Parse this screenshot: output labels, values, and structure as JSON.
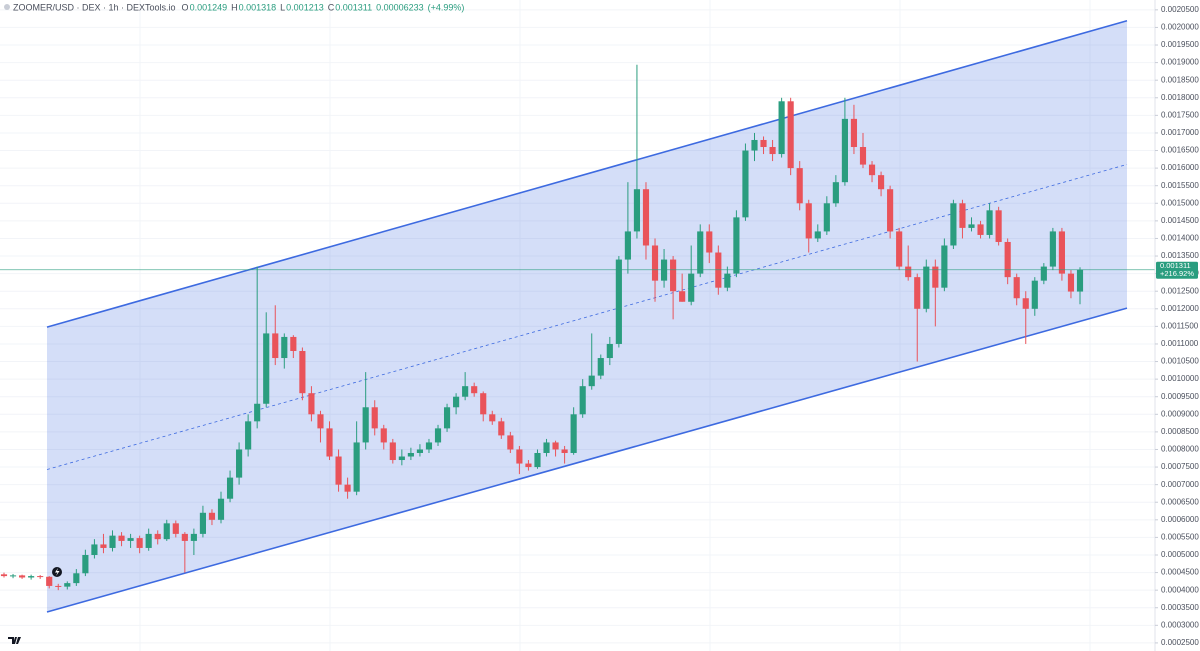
{
  "chart_data": {
    "type": "candlestick",
    "title": "ZOOMER/USD · DEX · 1h · DEXTools.io",
    "ohlc_labels": [
      "O",
      "H",
      "L",
      "C"
    ],
    "change": 6.233e-05,
    "change_pct": {
      "value": 4.99,
      "label": "(+4.99%)"
    },
    "total_change_pct": {
      "value": 216.92,
      "label": "+216.92%"
    },
    "up_color": "#2a9d7f",
    "down_color": "#e9535a",
    "channel_color": "#3d6ae0",
    "grid": true,
    "ylim": [
      0.000227,
      0.002078
    ],
    "yticks": [
      {
        "value": 0.00025,
        "label": "0.0002500"
      },
      {
        "value": 0.0003,
        "label": "0.0003000"
      },
      {
        "value": 0.00035,
        "label": "0.0003500"
      },
      {
        "value": 0.0004,
        "label": "0.0004000"
      },
      {
        "value": 0.00045,
        "label": "0.0004500"
      },
      {
        "value": 0.0005,
        "label": "0.0005000"
      },
      {
        "value": 0.00055,
        "label": "0.0005500"
      },
      {
        "value": 0.0006,
        "label": "0.0006000"
      },
      {
        "value": 0.00065,
        "label": "0.0006500"
      },
      {
        "value": 0.0007,
        "label": "0.0007000"
      },
      {
        "value": 0.00075,
        "label": "0.0007500"
      },
      {
        "value": 0.0008,
        "label": "0.0008000"
      },
      {
        "value": 0.00085,
        "label": "0.0008500"
      },
      {
        "value": 0.0009,
        "label": "0.0009000"
      },
      {
        "value": 0.00095,
        "label": "0.0009500"
      },
      {
        "value": 0.001,
        "label": "0.0010000"
      },
      {
        "value": 0.00105,
        "label": "0.0010500"
      },
      {
        "value": 0.0011,
        "label": "0.0011000"
      },
      {
        "value": 0.00115,
        "label": "0.0011500"
      },
      {
        "value": 0.0012,
        "label": "0.0012000"
      },
      {
        "value": 0.00125,
        "label": "0.0012500"
      },
      {
        "value": 0.0013,
        "label": "0.0013000"
      },
      {
        "value": 0.00135,
        "label": "0.0013500"
      },
      {
        "value": 0.0014,
        "label": "0.0014000"
      },
      {
        "value": 0.00145,
        "label": "0.0014500"
      },
      {
        "value": 0.0015,
        "label": "0.0015000"
      },
      {
        "value": 0.00155,
        "label": "0.0015500"
      },
      {
        "value": 0.0016,
        "label": "0.0016000"
      },
      {
        "value": 0.00165,
        "label": "0.0016500"
      },
      {
        "value": 0.0017,
        "label": "0.0017000"
      },
      {
        "value": 0.00175,
        "label": "0.0017500"
      },
      {
        "value": 0.0018,
        "label": "0.0018000"
      },
      {
        "value": 0.00185,
        "label": "0.0018500"
      },
      {
        "value": 0.0019,
        "label": "0.0019000"
      },
      {
        "value": 0.00195,
        "label": "0.0019500"
      },
      {
        "value": 0.002,
        "label": "0.0020000"
      },
      {
        "value": 0.00205,
        "label": "0.0020500"
      }
    ],
    "channel": {
      "upper": [
        0.001148,
        0.002019
      ],
      "lower": [
        0.000338,
        0.001202
      ]
    },
    "ohlc": [
      [
        0.000445,
        0.00045,
        0.000436,
        0.00044
      ],
      [
        0.00044,
        0.000446,
        0.000434,
        0.000442
      ],
      [
        0.000442,
        0.000444,
        0.000432,
        0.000436
      ],
      [
        0.000436,
        0.000444,
        0.00043,
        0.00044
      ],
      [
        0.00044,
        0.000443,
        0.000432,
        0.000438
      ],
      [
        0.000438,
        0.00044,
        0.000405,
        0.000412
      ],
      [
        0.000412,
        0.000418,
        0.0004,
        0.00041
      ],
      [
        0.00041,
        0.000425,
        0.000402,
        0.00042
      ],
      [
        0.00042,
        0.00046,
        0.000412,
        0.000448
      ],
      [
        0.000448,
        0.000515,
        0.00044,
        0.0005
      ],
      [
        0.0005,
        0.000545,
        0.00049,
        0.00053
      ],
      [
        0.00053,
        0.00056,
        0.000505,
        0.00052
      ],
      [
        0.00052,
        0.00057,
        0.00051,
        0.000555
      ],
      [
        0.000555,
        0.000565,
        0.000525,
        0.00054
      ],
      [
        0.00054,
        0.00056,
        0.00052,
        0.000548
      ],
      [
        0.000548,
        0.000555,
        0.000505,
        0.00052
      ],
      [
        0.00052,
        0.000575,
        0.000512,
        0.00056
      ],
      [
        0.00056,
        0.00057,
        0.00053,
        0.000545
      ],
      [
        0.000545,
        0.0006,
        0.00054,
        0.00059
      ],
      [
        0.00059,
        0.000598,
        0.00055,
        0.00056
      ],
      [
        0.00056,
        0.000565,
        0.00045,
        0.00054
      ],
      [
        0.00054,
        0.000575,
        0.0005,
        0.00056
      ],
      [
        0.00056,
        0.00064,
        0.00055,
        0.00062
      ],
      [
        0.00062,
        0.00063,
        0.000585,
        0.0006
      ],
      [
        0.0006,
        0.00068,
        0.00059,
        0.00066
      ],
      [
        0.00066,
        0.00074,
        0.00065,
        0.00072
      ],
      [
        0.00072,
        0.00082,
        0.0007,
        0.0008
      ],
      [
        0.0008,
        0.0009,
        0.00078,
        0.00088
      ],
      [
        0.00088,
        0.00132,
        0.00086,
        0.00093
      ],
      [
        0.00093,
        0.00119,
        0.00092,
        0.00113
      ],
      [
        0.00113,
        0.00121,
        0.00104,
        0.00106
      ],
      [
        0.00106,
        0.00113,
        0.00103,
        0.00112
      ],
      [
        0.00112,
        0.001125,
        0.00106,
        0.00108
      ],
      [
        0.00108,
        0.00109,
        0.00094,
        0.00096
      ],
      [
        0.00096,
        0.00098,
        0.00088,
        0.0009
      ],
      [
        0.0009,
        0.00091,
        0.00082,
        0.00086
      ],
      [
        0.00086,
        0.00088,
        0.00077,
        0.00078
      ],
      [
        0.00078,
        0.0008,
        0.00068,
        0.0007
      ],
      [
        0.0007,
        0.00072,
        0.00066,
        0.00068
      ],
      [
        0.00068,
        0.00088,
        0.00067,
        0.00082
      ],
      [
        0.00082,
        0.00102,
        0.0008,
        0.00092
      ],
      [
        0.00092,
        0.00094,
        0.00084,
        0.00086
      ],
      [
        0.00086,
        0.00087,
        0.0008,
        0.00082
      ],
      [
        0.00082,
        0.00083,
        0.00076,
        0.00077
      ],
      [
        0.00077,
        0.0008,
        0.000755,
        0.00078
      ],
      [
        0.00078,
        0.000805,
        0.00077,
        0.00079
      ],
      [
        0.00079,
        0.000815,
        0.00078,
        0.0008
      ],
      [
        0.0008,
        0.00083,
        0.00079,
        0.00082
      ],
      [
        0.00082,
        0.00087,
        0.00081,
        0.00086
      ],
      [
        0.00086,
        0.00093,
        0.00085,
        0.00092
      ],
      [
        0.00092,
        0.00096,
        0.0009,
        0.00095
      ],
      [
        0.00095,
        0.00102,
        0.00094,
        0.00098
      ],
      [
        0.00098,
        0.00099,
        0.00095,
        0.00096
      ],
      [
        0.00096,
        0.000965,
        0.00088,
        0.0009
      ],
      [
        0.0009,
        0.00091,
        0.00087,
        0.00088
      ],
      [
        0.00088,
        0.00089,
        0.00083,
        0.00084
      ],
      [
        0.00084,
        0.00085,
        0.00079,
        0.0008
      ],
      [
        0.0008,
        0.00081,
        0.00073,
        0.00076
      ],
      [
        0.00076,
        0.00077,
        0.00074,
        0.00075
      ],
      [
        0.00075,
        0.0008,
        0.000745,
        0.00079
      ],
      [
        0.00079,
        0.00083,
        0.00078,
        0.00082
      ],
      [
        0.00082,
        0.000825,
        0.00078,
        0.0008
      ],
      [
        0.0008,
        0.00081,
        0.00076,
        0.00079
      ],
      [
        0.00079,
        0.00092,
        0.000785,
        0.0009
      ],
      [
        0.0009,
        0.001,
        0.00089,
        0.00098
      ],
      [
        0.00098,
        0.00113,
        0.00097,
        0.00101
      ],
      [
        0.00101,
        0.00107,
        0.001,
        0.00106
      ],
      [
        0.00106,
        0.00112,
        0.00104,
        0.0011
      ],
      [
        0.0011,
        0.00135,
        0.00109,
        0.00134
      ],
      [
        0.00134,
        0.00156,
        0.0013,
        0.00142
      ],
      [
        0.00142,
        0.001894,
        0.0014,
        0.00154
      ],
      [
        0.00154,
        0.00156,
        0.00134,
        0.00138
      ],
      [
        0.00138,
        0.0014,
        0.00122,
        0.00128
      ],
      [
        0.00128,
        0.00137,
        0.00126,
        0.00134
      ],
      [
        0.00134,
        0.00135,
        0.00117,
        0.00125
      ],
      [
        0.00125,
        0.0013,
        0.00122,
        0.00122
      ],
      [
        0.00122,
        0.00138,
        0.00121,
        0.0013
      ],
      [
        0.0013,
        0.00144,
        0.00129,
        0.00142
      ],
      [
        0.00142,
        0.00144,
        0.00133,
        0.00136
      ],
      [
        0.00136,
        0.00138,
        0.00124,
        0.00126
      ],
      [
        0.00126,
        0.00132,
        0.00125,
        0.0013
      ],
      [
        0.0013,
        0.00148,
        0.00129,
        0.00146
      ],
      [
        0.00146,
        0.00167,
        0.00145,
        0.00165
      ],
      [
        0.00165,
        0.0017,
        0.00162,
        0.00168
      ],
      [
        0.00168,
        0.00169,
        0.00164,
        0.00166
      ],
      [
        0.00166,
        0.00168,
        0.00162,
        0.00164
      ],
      [
        0.00164,
        0.0018,
        0.00163,
        0.00179
      ],
      [
        0.00179,
        0.0018,
        0.00158,
        0.0016
      ],
      [
        0.0016,
        0.00162,
        0.00148,
        0.0015
      ],
      [
        0.0015,
        0.00151,
        0.00136,
        0.0014
      ],
      [
        0.0014,
        0.00144,
        0.00139,
        0.00142
      ],
      [
        0.00142,
        0.00152,
        0.00141,
        0.0015
      ],
      [
        0.0015,
        0.00158,
        0.00149,
        0.00156
      ],
      [
        0.00156,
        0.0018,
        0.00155,
        0.00174
      ],
      [
        0.00174,
        0.00178,
        0.00164,
        0.00166
      ],
      [
        0.00166,
        0.0017,
        0.0016,
        0.00161
      ],
      [
        0.00161,
        0.00162,
        0.00156,
        0.00158
      ],
      [
        0.00158,
        0.00159,
        0.00152,
        0.00154
      ],
      [
        0.00154,
        0.00155,
        0.0014,
        0.00142
      ],
      [
        0.00142,
        0.00143,
        0.00131,
        0.00132
      ],
      [
        0.00132,
        0.00138,
        0.00128,
        0.00129
      ],
      [
        0.00129,
        0.0013,
        0.00105,
        0.0012
      ],
      [
        0.0012,
        0.00134,
        0.00119,
        0.00132
      ],
      [
        0.00132,
        0.00134,
        0.00115,
        0.00126
      ],
      [
        0.00126,
        0.0014,
        0.00125,
        0.00138
      ],
      [
        0.00138,
        0.00151,
        0.00137,
        0.0015
      ],
      [
        0.0015,
        0.00151,
        0.0014,
        0.00143
      ],
      [
        0.00143,
        0.00146,
        0.00142,
        0.00144
      ],
      [
        0.00144,
        0.00145,
        0.0014,
        0.00141
      ],
      [
        0.00141,
        0.0015,
        0.0014,
        0.00148
      ],
      [
        0.00148,
        0.00149,
        0.00138,
        0.00139
      ],
      [
        0.00139,
        0.0014,
        0.00127,
        0.00129
      ],
      [
        0.00129,
        0.0013,
        0.00121,
        0.00123
      ],
      [
        0.00123,
        0.00125,
        0.0011,
        0.0012
      ],
      [
        0.0012,
        0.00129,
        0.00118,
        0.00128
      ],
      [
        0.00128,
        0.00133,
        0.00127,
        0.00132
      ],
      [
        0.00132,
        0.00143,
        0.00131,
        0.00142
      ],
      [
        0.00142,
        0.00143,
        0.00128,
        0.0013
      ],
      [
        0.0013,
        0.00131,
        0.00123,
        0.001249
      ],
      [
        0.001249,
        0.001318,
        0.001213,
        0.001311
      ]
    ]
  }
}
